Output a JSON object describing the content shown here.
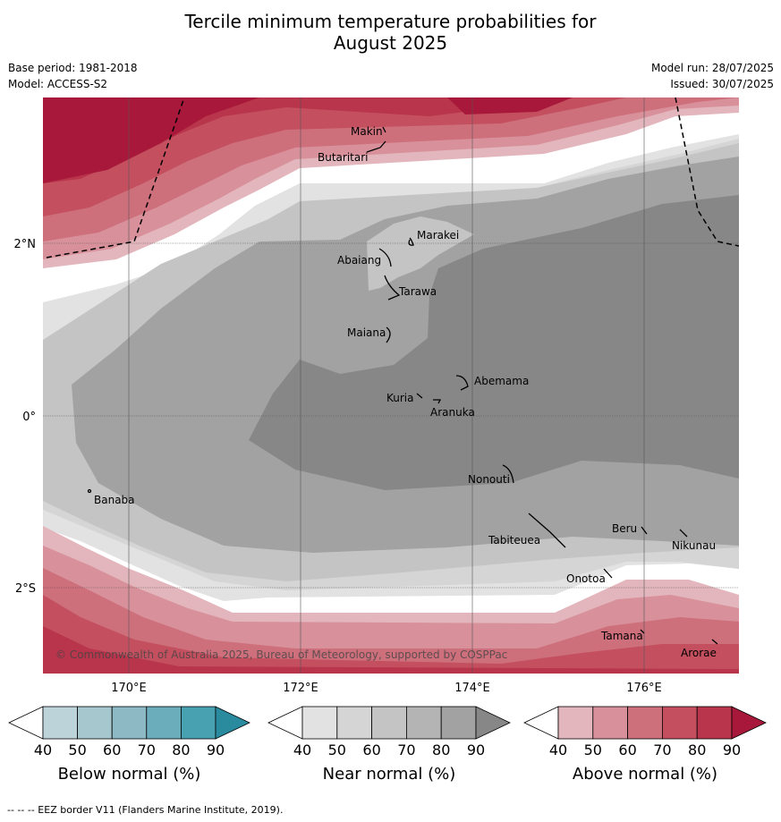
{
  "title_line1": "Tercile minimum temperature probabilities for",
  "title_line2": "August 2025",
  "base_period": "Base period: 1981-2018",
  "model": "Model: ACCESS-S2",
  "model_run": "Model run: 28/07/2025",
  "issued": "Issued: 30/07/2025",
  "copyright": "© Commonwealth of Australia 2025, Bureau of Meteorology, supported by COSPPac",
  "footnote": "-- -- -- EEZ border V11 (Flanders Marine Institute, 2019).",
  "lat_labels": [
    "2°N",
    "0°",
    "2°S"
  ],
  "lon_labels": [
    "170°E",
    "172°E",
    "174°E",
    "176°E"
  ],
  "places": [
    "Makin",
    "Butaritari",
    "Marakei",
    "Abaiang",
    "Tarawa",
    "Maiana",
    "Abemama",
    "Kuria",
    "Aranuka",
    "Nonouti",
    "Banaba",
    "Beru",
    "Tabiteuea",
    "Nikunau",
    "Onotoa",
    "Tamana",
    "Arorae"
  ],
  "colorbars": [
    {
      "label": "Below normal (%)",
      "ticks": [
        "40",
        "50",
        "60",
        "70",
        "80",
        "90"
      ],
      "colors": [
        "#ffffff",
        "#bcd3da",
        "#a6c7ce",
        "#8cb9c3",
        "#6badba",
        "#48a1b1",
        "#2a8b9e"
      ]
    },
    {
      "label": "Near normal (%)",
      "ticks": [
        "40",
        "50",
        "60",
        "70",
        "80",
        "90"
      ],
      "colors": [
        "#ffffff",
        "#e2e2e2",
        "#d5d5d5",
        "#c4c4c4",
        "#b4b4b4",
        "#a2a2a2",
        "#878787"
      ]
    },
    {
      "label": "Above normal (%)",
      "ticks": [
        "40",
        "50",
        "60",
        "70",
        "80",
        "90"
      ],
      "colors": [
        "#ffffff",
        "#e3b6bd",
        "#d8919b",
        "#ce6f7c",
        "#c4505f",
        "#b8354b",
        "#a8183a"
      ]
    }
  ]
}
